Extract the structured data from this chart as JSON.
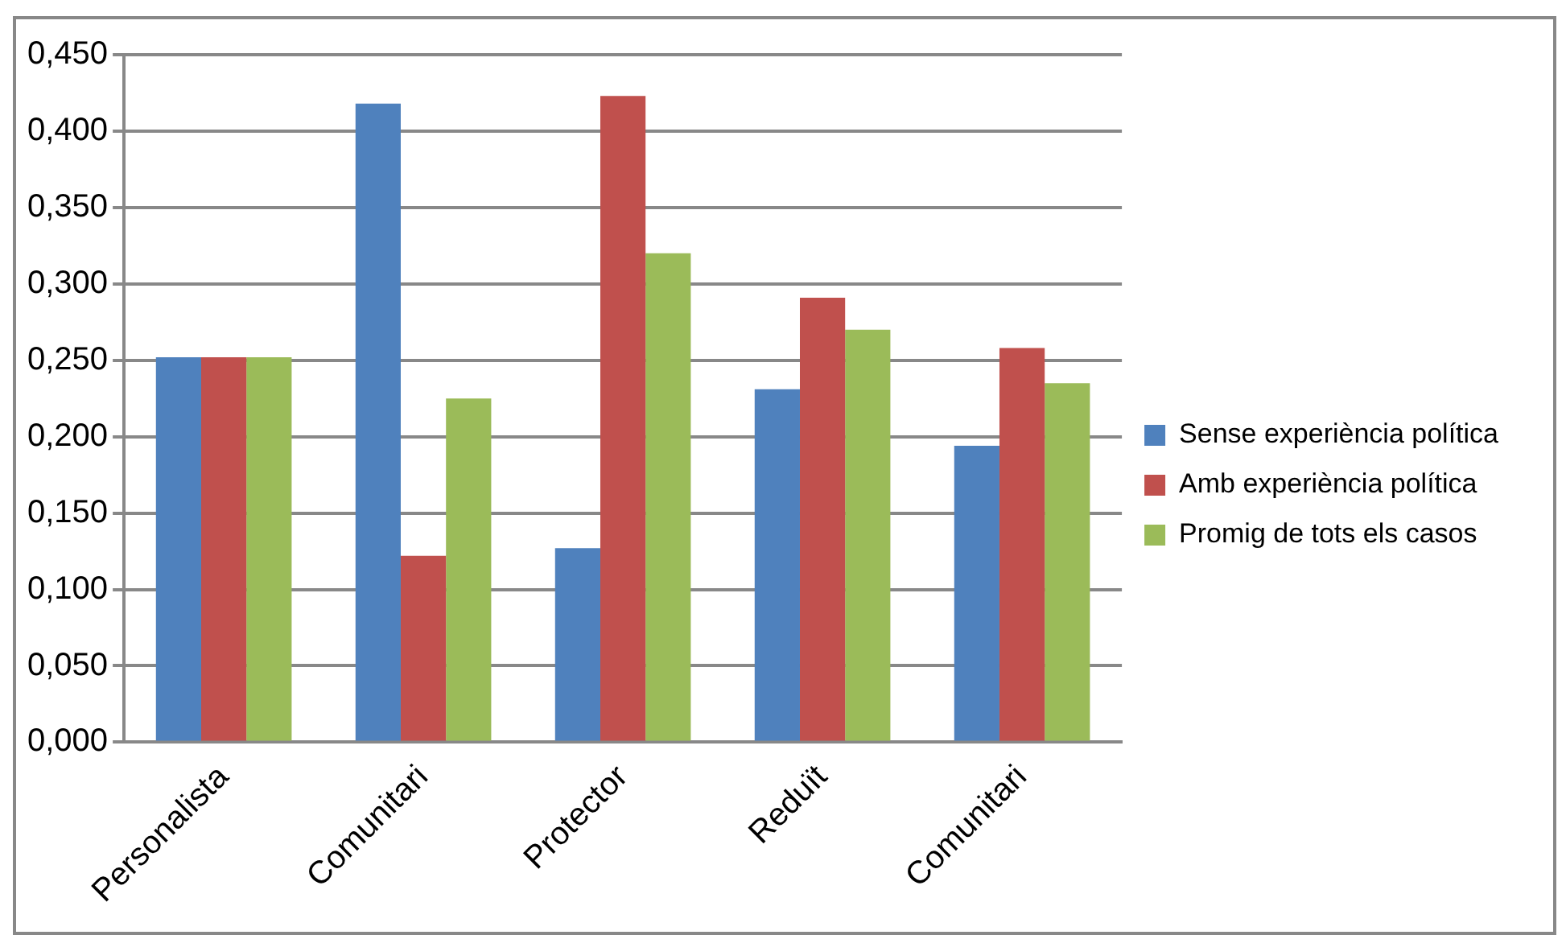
{
  "chart_data": {
    "type": "bar",
    "categories": [
      "Personalista",
      "Comunitari",
      "Protector",
      "Reduït",
      "Comunitari"
    ],
    "series": [
      {
        "name": "Sense experiència política",
        "color": "#4f81bd",
        "values": [
          0.252,
          0.418,
          0.127,
          0.231,
          0.194
        ]
      },
      {
        "name": "Amb experiència política",
        "color": "#c0504d",
        "values": [
          0.252,
          0.122,
          0.423,
          0.291,
          0.258
        ]
      },
      {
        "name": "Promig de tots els casos",
        "color": "#9bbb59",
        "values": [
          0.252,
          0.225,
          0.32,
          0.27,
          0.235
        ]
      }
    ],
    "ylim": [
      0,
      0.45
    ],
    "yticks": [
      {
        "value": 0,
        "label": "0,000"
      },
      {
        "value": 0.05,
        "label": "0,050"
      },
      {
        "value": 0.1,
        "label": "0,100"
      },
      {
        "value": 0.15,
        "label": "0,150"
      },
      {
        "value": 0.2,
        "label": "0,200"
      },
      {
        "value": 0.25,
        "label": "0,250"
      },
      {
        "value": 0.3,
        "label": "0,300"
      },
      {
        "value": 0.35,
        "label": "0,350"
      },
      {
        "value": 0.4,
        "label": "0,400"
      },
      {
        "value": 0.45,
        "label": "0,450"
      }
    ],
    "grid": "y",
    "legend": "right"
  }
}
